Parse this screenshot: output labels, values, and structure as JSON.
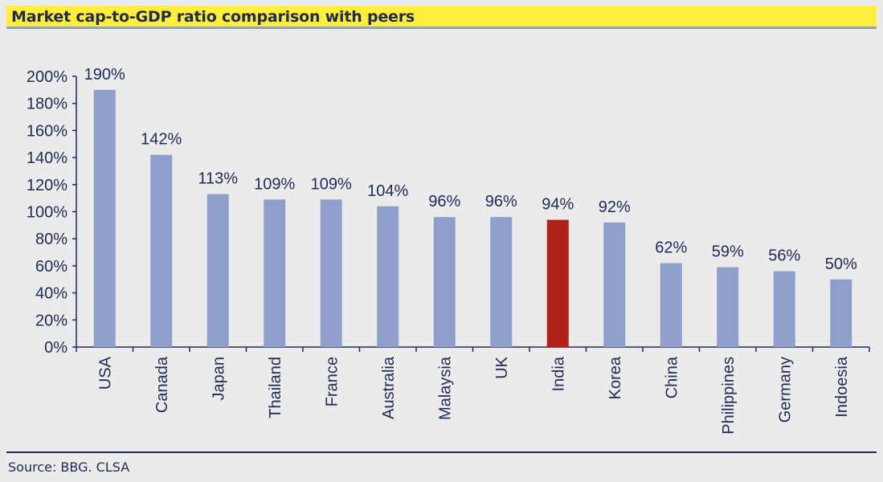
{
  "title": "Market cap-to-GDP ratio comparison with peers",
  "source": "Source: BBG. CLSA",
  "colors": {
    "bar": "#8e9fcb",
    "highlight": "#b0211c",
    "axis": "#1f2a55",
    "title_band": "#ffef3c"
  },
  "chart_data": {
    "type": "bar",
    "title": "Market cap-to-GDP ratio comparison with peers",
    "xlabel": "",
    "ylabel": "",
    "ylim": [
      0,
      200
    ],
    "y_ticks": [
      "0%",
      "20%",
      "40%",
      "60%",
      "80%",
      "100%",
      "120%",
      "140%",
      "160%",
      "180%",
      "200%"
    ],
    "categories": [
      "USA",
      "Canada",
      "Japan",
      "Thailand",
      "France",
      "Australia",
      "Malaysia",
      "UK",
      "India",
      "Korea",
      "China",
      "Philippines",
      "Germany",
      "Indoesia"
    ],
    "values": [
      190,
      142,
      113,
      109,
      109,
      104,
      96,
      96,
      94,
      92,
      62,
      59,
      56,
      50
    ],
    "data_labels": [
      "190%",
      "142%",
      "113%",
      "109%",
      "109%",
      "104%",
      "96%",
      "96%",
      "94%",
      "92%",
      "62%",
      "59%",
      "56%",
      "50%"
    ],
    "highlight": "India",
    "grid": false,
    "legend": "none"
  }
}
